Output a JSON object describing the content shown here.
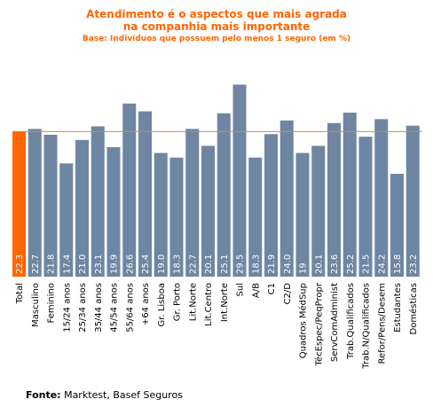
{
  "colors": {
    "title": "#ff6600",
    "bar": "#6f86a3",
    "highlight_bar": "#ff6600",
    "reference_line": "#d98a3a",
    "value_label": "#ffffff",
    "axis_label": "#000000"
  },
  "chart_data": {
    "type": "bar",
    "title_line1": "Atendimento é o aspectos que mais agrada",
    "title_line2": "na companhia mais importante",
    "subtitle": "Base: Indivíduos que possuem pelo menos 1 seguro (em %)",
    "categories": [
      "Total",
      "Masculino",
      "Feminino",
      "15/24 anos",
      "25/34 anos",
      "35/44 anos",
      "45/54 anos",
      "55/64 anos",
      "+64 anos",
      "Gr. Lisboa",
      "Gr. Porto",
      "Lit.Norte",
      "Lit.Centro",
      "Int.Norte",
      "Sul",
      "A/B",
      "C1",
      "C2/D",
      "Quadros MédSup",
      "TécEspec/PeqPropr",
      "ServComAdminist",
      "Trab.Qualificados",
      "Trab.N/Qualificados",
      "Refor/Pens/Desem",
      "Estudantes",
      "Domésticas"
    ],
    "value_labels": [
      "22.3",
      "22.7",
      "21.8",
      "17.4",
      "21.0",
      "23.1",
      "19.9",
      "26.6",
      "25.4",
      "19.0",
      "18.3",
      "22.7",
      "20.1",
      "25.1",
      "29.5",
      "18.3",
      "21.9",
      "24.0",
      "19",
      "20.1",
      "23.6",
      "25.2",
      "21.5",
      "24.2",
      "15.8",
      "23.2"
    ],
    "values": [
      22.3,
      22.7,
      21.8,
      17.4,
      21.0,
      23.1,
      19.9,
      26.6,
      25.4,
      19.0,
      18.3,
      22.7,
      20.1,
      25.1,
      29.5,
      18.3,
      21.9,
      24.0,
      19,
      20.1,
      23.6,
      25.2,
      21.5,
      24.2,
      15.8,
      23.2
    ],
    "highlight_index": 0,
    "reference_value": 22.3,
    "ylim": [
      0,
      30.5
    ],
    "grid": false,
    "legend": "none"
  },
  "source": {
    "label": "Fonte:",
    "text": "Marktest, Basef Seguros"
  }
}
